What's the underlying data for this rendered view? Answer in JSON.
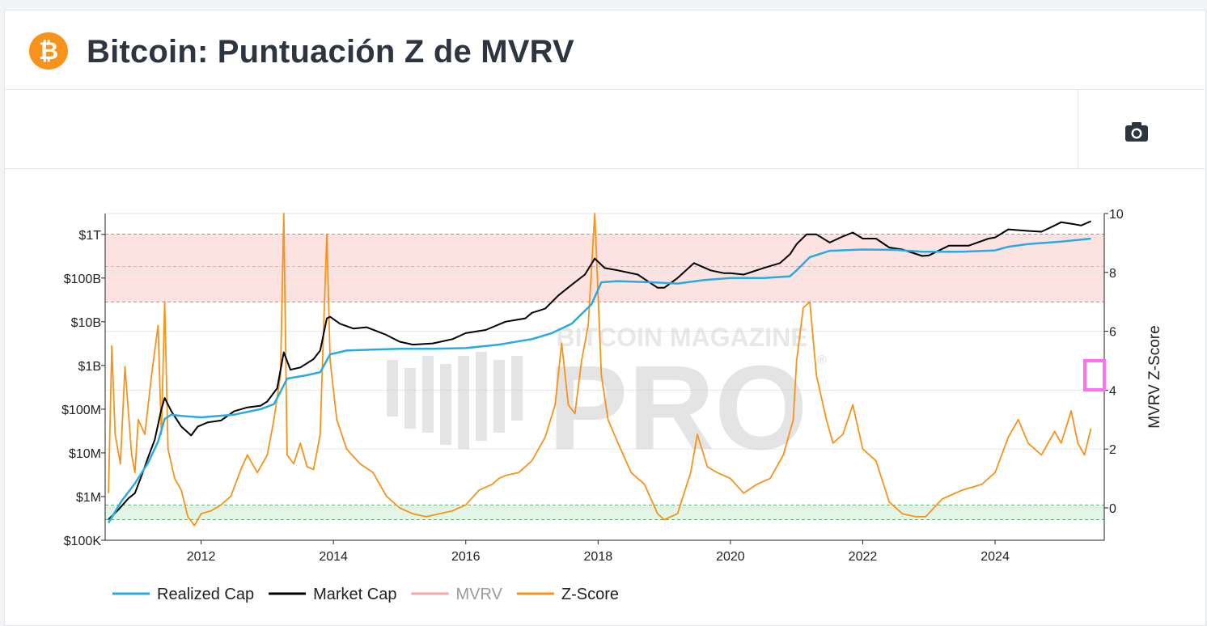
{
  "header": {
    "title": "Bitcoin: Puntuación Z de MVRV",
    "logo_glyph": "₿"
  },
  "toolbar": {
    "screenshot_icon": "camera-icon"
  },
  "watermark": {
    "top_text": "BITCOIN MAGAZINE",
    "main_text": "PRO",
    "reg_mark": "®"
  },
  "colors": {
    "realized_cap": "#29abe2",
    "market_cap": "#000000",
    "mvrv": "#f4a6a6",
    "z_score": "#f7931a",
    "upper_band": "#fde2e2",
    "lower_band": "#e3f6e6",
    "brand_orange": "#f7931a"
  },
  "chart_data": {
    "type": "line",
    "title": "Bitcoin: Puntuación Z de MVRV",
    "x_tick_labels": [
      "2012",
      "2014",
      "2016",
      "2018",
      "2020",
      "2022",
      "2024"
    ],
    "x_tick_years": [
      2012,
      2014,
      2016,
      2018,
      2020,
      2022,
      2024
    ],
    "xlim": [
      2010.55,
      2025.65
    ],
    "left_axis": {
      "scale": "log",
      "range_usd": [
        100000,
        3000000000000
      ],
      "tick_values": [
        100000,
        1000000,
        10000000,
        100000000,
        1000000000,
        10000000000,
        100000000000,
        1000000000000
      ],
      "tick_labels": [
        "$100K",
        "$1M",
        "$10M",
        "$100M",
        "$1B",
        "$10B",
        "$100B",
        "$1T"
      ]
    },
    "right_axis": {
      "label": "MVRV Z-Score",
      "range": [
        -1.1,
        10
      ],
      "tick_values": [
        0,
        2,
        4,
        6,
        8,
        10
      ],
      "tick_labels": [
        "0",
        "2",
        "4",
        "6",
        "8",
        "10"
      ]
    },
    "bands": [
      {
        "name": "upper",
        "from": 7,
        "to": 9.3
      },
      {
        "name": "lower",
        "from": -0.4,
        "to": 0.1
      }
    ],
    "legend": {
      "placement": "bottom-left",
      "items": [
        {
          "label": "Realized Cap",
          "key": "realized_cap",
          "muted": false
        },
        {
          "label": "Market Cap",
          "key": "market_cap",
          "muted": false
        },
        {
          "label": "MVRV",
          "key": "mvrv",
          "muted": true
        },
        {
          "label": "Z-Score",
          "key": "z_score",
          "muted": false
        }
      ]
    },
    "series": [
      {
        "name": "Market Cap",
        "axis": "left",
        "x": [
          2010.6,
          2010.75,
          2010.9,
          2011.0,
          2011.1,
          2011.2,
          2011.3,
          2011.4,
          2011.45,
          2011.55,
          2011.7,
          2011.85,
          2011.95,
          2012.1,
          2012.3,
          2012.5,
          2012.7,
          2012.9,
          2013.0,
          2013.15,
          2013.25,
          2013.35,
          2013.5,
          2013.7,
          2013.8,
          2013.9,
          2013.95,
          2014.1,
          2014.3,
          2014.5,
          2014.8,
          2015.0,
          2015.2,
          2015.5,
          2015.8,
          2016.0,
          2016.3,
          2016.6,
          2016.9,
          2017.0,
          2017.2,
          2017.4,
          2017.6,
          2017.8,
          2017.95,
          2018.1,
          2018.3,
          2018.6,
          2018.9,
          2019.0,
          2019.2,
          2019.45,
          2019.7,
          2019.9,
          2020.0,
          2020.2,
          2020.5,
          2020.75,
          2020.9,
          2021.0,
          2021.15,
          2021.3,
          2021.5,
          2021.7,
          2021.85,
          2022.0,
          2022.2,
          2022.4,
          2022.6,
          2022.9,
          2023.0,
          2023.3,
          2023.6,
          2023.9,
          2024.0,
          2024.2,
          2024.5,
          2024.7,
          2024.9,
          2025.0,
          2025.2,
          2025.3,
          2025.45
        ],
        "y": [
          300000,
          500000,
          900000,
          1200000,
          3000000,
          8000000,
          20000000,
          100000000,
          180000000,
          90000000,
          40000000,
          25000000,
          40000000,
          50000000,
          55000000,
          90000000,
          110000000,
          120000000,
          150000000,
          300000000,
          2000000000,
          800000000,
          900000000,
          1400000000,
          2200000000,
          12000000000,
          13000000000,
          9000000000,
          7000000000,
          7500000000,
          5000000000,
          3500000000,
          3000000000,
          3200000000,
          4000000000,
          5500000000,
          6500000000,
          10000000000,
          12000000000,
          16000000000,
          20000000000,
          40000000000,
          70000000000,
          120000000000,
          280000000000,
          170000000000,
          150000000000,
          120000000000,
          60000000000,
          60000000000,
          100000000000,
          220000000000,
          150000000000,
          130000000000,
          130000000000,
          120000000000,
          170000000000,
          220000000000,
          350000000000,
          600000000000,
          1000000000000,
          1000000000000,
          650000000000,
          900000000000,
          1100000000000,
          800000000000,
          800000000000,
          500000000000,
          450000000000,
          320000000000,
          330000000000,
          550000000000,
          550000000000,
          800000000000,
          850000000000,
          1300000000000,
          1200000000000,
          1150000000000,
          1600000000000,
          1900000000000,
          1700000000000,
          1600000000000,
          2000000000000
        ]
      },
      {
        "name": "Realized Cap",
        "axis": "left",
        "x": [
          2010.6,
          2010.8,
          2011.0,
          2011.2,
          2011.35,
          2011.45,
          2011.55,
          2011.7,
          2012.0,
          2012.5,
          2012.9,
          2013.1,
          2013.2,
          2013.3,
          2013.6,
          2013.8,
          2013.95,
          2014.2,
          2014.6,
          2015.0,
          2015.5,
          2016.0,
          2016.5,
          2017.0,
          2017.3,
          2017.6,
          2017.9,
          2018.05,
          2018.3,
          2018.8,
          2019.2,
          2019.6,
          2020.0,
          2020.5,
          2020.9,
          2021.0,
          2021.2,
          2021.5,
          2022.0,
          2022.5,
          2022.9,
          2023.5,
          2024.0,
          2024.2,
          2024.5,
          2025.0,
          2025.45
        ],
        "y": [
          250000,
          800000,
          2000000,
          6000000,
          18000000,
          60000000,
          75000000,
          70000000,
          65000000,
          75000000,
          100000000,
          130000000,
          250000000,
          500000000,
          600000000,
          700000000,
          1800000000,
          2200000000,
          2300000000,
          2400000000,
          2400000000,
          2500000000,
          3000000000,
          4000000000,
          5500000000,
          9000000000,
          25000000000,
          80000000000,
          85000000000,
          80000000000,
          75000000000,
          90000000000,
          100000000000,
          100000000000,
          110000000000,
          150000000000,
          300000000000,
          420000000000,
          450000000000,
          440000000000,
          400000000000,
          400000000000,
          430000000000,
          520000000000,
          600000000000,
          680000000000,
          800000000000
        ]
      },
      {
        "name": "Z-Score",
        "axis": "right",
        "x": [
          2010.6,
          2010.65,
          2010.7,
          2010.78,
          2010.85,
          2010.95,
          2011.0,
          2011.05,
          2011.15,
          2011.25,
          2011.35,
          2011.4,
          2011.45,
          2011.5,
          2011.6,
          2011.7,
          2011.8,
          2011.9,
          2012.0,
          2012.15,
          2012.3,
          2012.45,
          2012.6,
          2012.7,
          2012.85,
          2013.0,
          2013.1,
          2013.2,
          2013.25,
          2013.3,
          2013.4,
          2013.5,
          2013.6,
          2013.7,
          2013.8,
          2013.85,
          2013.9,
          2013.95,
          2014.05,
          2014.2,
          2014.4,
          2014.6,
          2014.8,
          2015.0,
          2015.2,
          2015.4,
          2015.6,
          2015.8,
          2016.0,
          2016.2,
          2016.4,
          2016.5,
          2016.6,
          2016.8,
          2017.0,
          2017.2,
          2017.35,
          2017.45,
          2017.55,
          2017.65,
          2017.75,
          2017.85,
          2017.95,
          2018.05,
          2018.15,
          2018.3,
          2018.5,
          2018.7,
          2018.9,
          2019.0,
          2019.2,
          2019.4,
          2019.5,
          2019.65,
          2019.8,
          2020.0,
          2020.2,
          2020.4,
          2020.6,
          2020.8,
          2020.95,
          2021.0,
          2021.1,
          2021.2,
          2021.3,
          2021.45,
          2021.55,
          2021.7,
          2021.85,
          2022.0,
          2022.2,
          2022.4,
          2022.6,
          2022.8,
          2022.95,
          2023.2,
          2023.5,
          2023.8,
          2024.0,
          2024.2,
          2024.35,
          2024.5,
          2024.7,
          2024.9,
          2025.0,
          2025.15,
          2025.25,
          2025.35,
          2025.45
        ],
        "y": [
          0.5,
          5.5,
          2.5,
          1.5,
          4.8,
          1.8,
          1.2,
          3.0,
          2.5,
          4.5,
          6.2,
          2.5,
          7.0,
          2.0,
          1.0,
          0.6,
          -0.3,
          -0.6,
          -0.2,
          -0.1,
          0.1,
          0.4,
          1.3,
          1.8,
          1.2,
          1.8,
          3.0,
          4.5,
          10.0,
          1.8,
          1.5,
          2.2,
          1.4,
          1.3,
          2.5,
          6.0,
          9.3,
          5.0,
          3.0,
          2.0,
          1.5,
          1.2,
          0.4,
          0.0,
          -0.2,
          -0.3,
          -0.2,
          -0.1,
          0.1,
          0.6,
          0.8,
          1.0,
          1.1,
          1.2,
          1.6,
          2.4,
          3.5,
          5.6,
          3.5,
          3.2,
          5.0,
          6.2,
          10.0,
          4.5,
          3.0,
          2.2,
          1.2,
          0.8,
          -0.2,
          -0.4,
          -0.2,
          1.2,
          2.5,
          1.4,
          1.2,
          1.0,
          0.5,
          0.8,
          1.0,
          1.8,
          3.0,
          5.0,
          6.8,
          7.0,
          4.5,
          3.0,
          2.2,
          2.5,
          3.5,
          2.0,
          1.6,
          0.2,
          -0.2,
          -0.3,
          -0.3,
          0.3,
          0.6,
          0.8,
          1.2,
          2.4,
          3.0,
          2.2,
          1.8,
          2.6,
          2.2,
          3.3,
          2.2,
          1.8,
          2.7
        ]
      }
    ]
  }
}
